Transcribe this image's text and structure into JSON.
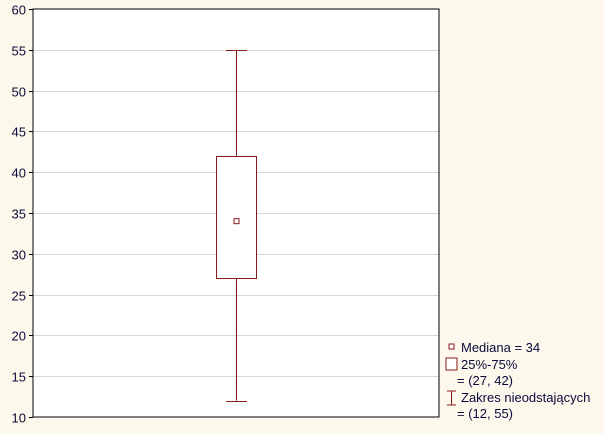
{
  "chart_data": {
    "type": "boxplot",
    "title": "",
    "xlabel": "",
    "ylabel": "",
    "ylim": [
      10,
      60
    ],
    "yticks": [
      10,
      15,
      20,
      25,
      30,
      35,
      40,
      45,
      50,
      55,
      60
    ],
    "grid": true,
    "legend_placement": "bottom-right",
    "box": {
      "median": 34,
      "q1": 27,
      "q3": 42,
      "whisker_low": 12,
      "whisker_high": 55
    },
    "legend": {
      "median": "Mediana = 34",
      "box": "25%-75%",
      "box_values": "= (27, 42)",
      "whisker": "Zakres nieodstających",
      "whisker_values": "= (12, 55)"
    },
    "colors": {
      "box": "#8b1a1a",
      "background": "#fdf8ec",
      "grid": "#d8d8d8",
      "text": "#0a0a3a"
    }
  }
}
